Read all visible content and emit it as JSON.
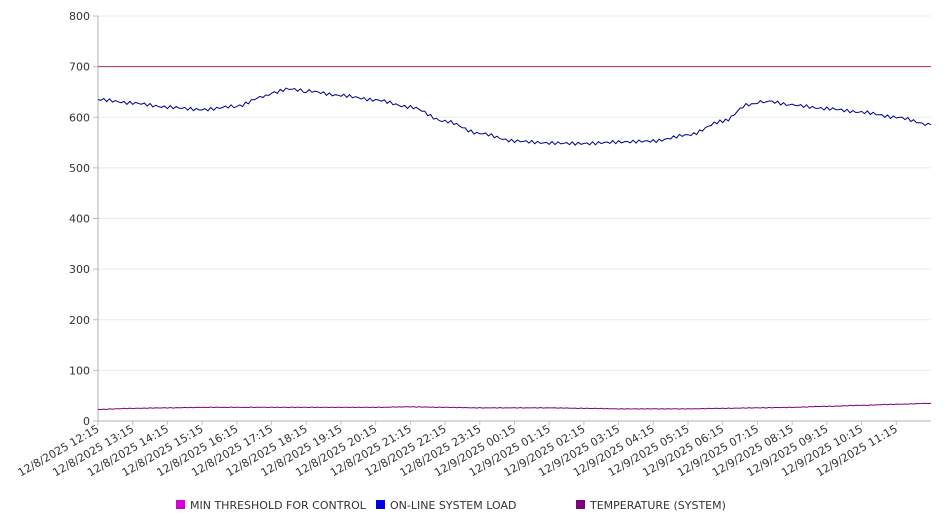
{
  "chart_data": {
    "type": "line",
    "title": "",
    "xlabel": "",
    "ylabel": "",
    "ylim": [
      0,
      800
    ],
    "yticks": [
      0,
      100,
      200,
      300,
      400,
      500,
      600,
      700,
      800
    ],
    "grid": true,
    "legend_position": "bottom",
    "x_tick_labels": [
      "12/8/2025 12:15",
      "12/8/2025 13:15",
      "12/8/2025 14:15",
      "12/8/2025 15:15",
      "12/8/2025 16:15",
      "12/8/2025 17:15",
      "12/8/2025 18:15",
      "12/8/2025 19:15",
      "12/8/2025 20:15",
      "12/8/2025 21:15",
      "12/8/2025 22:15",
      "12/8/2025 23:15",
      "12/9/2025 00:15",
      "12/9/2025 01:15",
      "12/9/2025 02:15",
      "12/9/2025 03:15",
      "12/9/2025 04:15",
      "12/9/2025 05:15",
      "12/9/2025 06:15",
      "12/9/2025 07:15",
      "12/9/2025 08:15",
      "12/9/2025 09:15",
      "12/9/2025 10:15",
      "12/9/2025 11:15"
    ],
    "x_range": [
      "12/8/2025 12:15",
      "12/9/2025 12:15"
    ],
    "series": [
      {
        "name": "MIN THRESHOLD FOR CONTROL",
        "color": "#d400d4",
        "line_color": "#b03070",
        "points": [
          [
            "12/8/2025 12:15",
            700
          ],
          [
            "12/9/2025 12:15",
            700
          ]
        ]
      },
      {
        "name": "ON-LINE SYSTEM LOAD",
        "color": "#0000e6",
        "line_color": "#00008b",
        "points": [
          [
            "12/8/2025 12:15",
            635
          ],
          [
            "12/8/2025 13:15",
            628
          ],
          [
            "12/8/2025 14:15",
            620
          ],
          [
            "12/8/2025 15:15",
            615
          ],
          [
            "12/8/2025 16:15",
            622
          ],
          [
            "12/8/2025 17:00",
            640
          ],
          [
            "12/8/2025 17:15",
            648
          ],
          [
            "12/8/2025 17:45",
            656
          ],
          [
            "12/8/2025 18:15",
            652
          ],
          [
            "12/8/2025 19:15",
            643
          ],
          [
            "12/8/2025 20:15",
            634
          ],
          [
            "12/8/2025 21:15",
            620
          ],
          [
            "12/8/2025 22:15",
            592
          ],
          [
            "12/8/2025 23:15",
            568
          ],
          [
            "12/9/2025 00:15",
            553
          ],
          [
            "12/9/2025 01:15",
            549
          ],
          [
            "12/9/2025 02:15",
            548
          ],
          [
            "12/9/2025 03:15",
            551
          ],
          [
            "12/9/2025 04:15",
            553
          ],
          [
            "12/9/2025 05:15",
            565
          ],
          [
            "12/9/2025 06:15",
            592
          ],
          [
            "12/9/2025 07:00",
            625
          ],
          [
            "12/9/2025 07:30",
            632
          ],
          [
            "12/9/2025 08:15",
            624
          ],
          [
            "12/9/2025 09:15",
            617
          ],
          [
            "12/9/2025 10:15",
            610
          ],
          [
            "12/9/2025 11:15",
            600
          ],
          [
            "12/9/2025 12:15",
            585
          ]
        ]
      },
      {
        "name": "TEMPERATURE (SYSTEM)",
        "color": "#800080",
        "line_color": "#800080",
        "points": [
          [
            "12/8/2025 12:15",
            23
          ],
          [
            "12/8/2025 13:15",
            25
          ],
          [
            "12/8/2025 14:15",
            26
          ],
          [
            "12/8/2025 15:15",
            27
          ],
          [
            "12/8/2025 16:15",
            27
          ],
          [
            "12/8/2025 17:15",
            27
          ],
          [
            "12/8/2025 18:15",
            27
          ],
          [
            "12/8/2025 19:15",
            27
          ],
          [
            "12/8/2025 20:15",
            27
          ],
          [
            "12/8/2025 21:15",
            28
          ],
          [
            "12/8/2025 22:15",
            27
          ],
          [
            "12/8/2025 23:15",
            26
          ],
          [
            "12/9/2025 00:15",
            26
          ],
          [
            "12/9/2025 01:15",
            26
          ],
          [
            "12/9/2025 02:15",
            25
          ],
          [
            "12/9/2025 03:15",
            24
          ],
          [
            "12/9/2025 04:15",
            24
          ],
          [
            "12/9/2025 05:15",
            24
          ],
          [
            "12/9/2025 06:15",
            25
          ],
          [
            "12/9/2025 07:15",
            26
          ],
          [
            "12/9/2025 08:15",
            27
          ],
          [
            "12/9/2025 09:15",
            29
          ],
          [
            "12/9/2025 10:15",
            31
          ],
          [
            "12/9/2025 11:15",
            33
          ],
          [
            "12/9/2025 12:15",
            35
          ]
        ]
      }
    ]
  }
}
